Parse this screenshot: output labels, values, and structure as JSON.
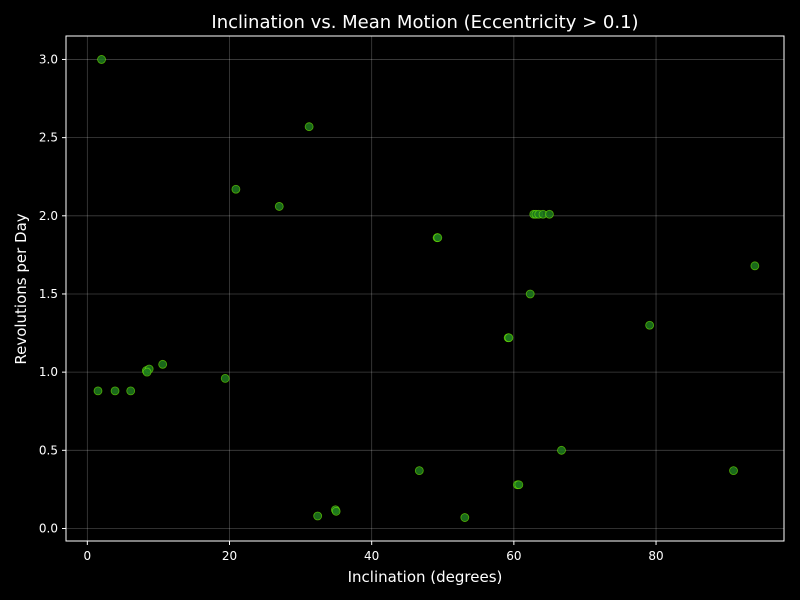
{
  "chart_data": {
    "type": "scatter",
    "title": "Inclination vs. Mean Motion (Eccentricity > 0.1)",
    "xlabel": "Inclination (degrees)",
    "ylabel": "Revolutions per Day",
    "xlim": [
      -3,
      98
    ],
    "ylim": [
      -0.08,
      3.15
    ],
    "xticks": [
      0,
      20,
      40,
      60,
      80
    ],
    "yticks": [
      0.0,
      0.5,
      1.0,
      1.5,
      2.0,
      2.5,
      3.0
    ],
    "xtick_labels": [
      "0",
      "20",
      "40",
      "60",
      "80"
    ],
    "ytick_labels": [
      "0.0",
      "0.5",
      "1.0",
      "1.5",
      "2.0",
      "2.5",
      "3.0"
    ],
    "grid": true,
    "colors": {
      "background": "#000000",
      "marker_fill": "#1e7a1e",
      "marker_edge": "#7CFC00",
      "text": "#ffffff"
    },
    "x": [
      2.0,
      31.2,
      20.9,
      27.0,
      49.2,
      49.3,
      62.8,
      63.1,
      63.5,
      64.1,
      65.0,
      93.9,
      62.3,
      79.1,
      59.2,
      59.3,
      1.5,
      3.9,
      6.1,
      8.3,
      8.7,
      8.4,
      10.6,
      19.4,
      66.7,
      46.7,
      90.9,
      60.5,
      60.7,
      32.4,
      34.9,
      35.0,
      53.1
    ],
    "y": [
      3.0,
      2.57,
      2.17,
      2.06,
      1.86,
      1.86,
      2.01,
      2.01,
      2.01,
      2.01,
      2.01,
      1.68,
      1.5,
      1.3,
      1.22,
      1.22,
      0.88,
      0.88,
      0.88,
      1.01,
      1.02,
      1.0,
      1.05,
      0.96,
      0.5,
      0.37,
      0.37,
      0.28,
      0.28,
      0.08,
      0.12,
      0.11,
      0.07
    ]
  }
}
